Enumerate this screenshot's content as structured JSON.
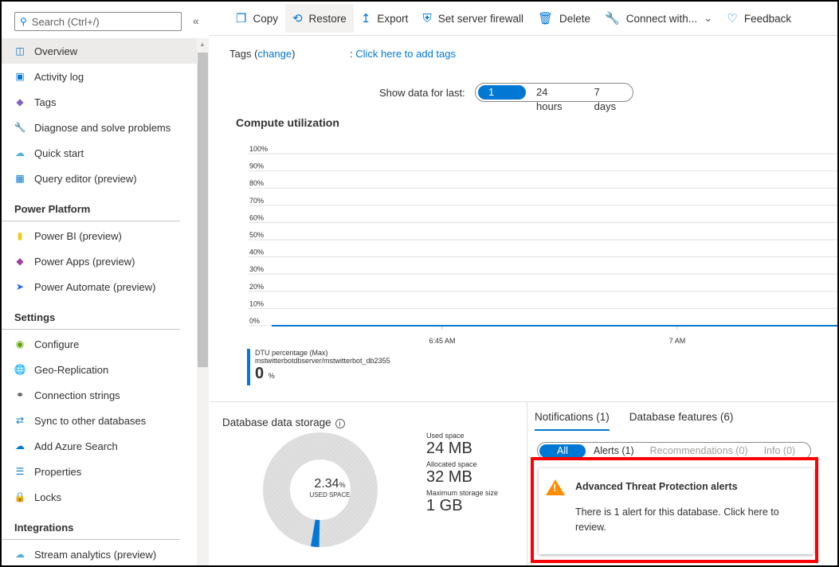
{
  "sidebar": {
    "search_placeholder": "Search (Ctrl+/)",
    "items": [
      {
        "label": "Overview",
        "icon": "sql-database-icon",
        "active": true
      },
      {
        "label": "Activity log",
        "icon": "activity-log-icon"
      },
      {
        "label": "Tags",
        "icon": "tag-icon"
      },
      {
        "label": "Diagnose and solve problems",
        "icon": "wrench-icon"
      },
      {
        "label": "Quick start",
        "icon": "cloud-icon"
      },
      {
        "label": "Query editor (preview)",
        "icon": "query-editor-icon"
      }
    ],
    "sections": [
      {
        "title": "Power Platform",
        "items": [
          {
            "label": "Power BI (preview)",
            "icon": "power-bi-icon"
          },
          {
            "label": "Power Apps (preview)",
            "icon": "power-apps-icon"
          },
          {
            "label": "Power Automate (preview)",
            "icon": "power-automate-icon"
          }
        ]
      },
      {
        "title": "Settings",
        "items": [
          {
            "label": "Configure",
            "icon": "configure-icon"
          },
          {
            "label": "Geo-Replication",
            "icon": "globe-icon"
          },
          {
            "label": "Connection strings",
            "icon": "plug-icon"
          },
          {
            "label": "Sync to other databases",
            "icon": "sync-icon"
          },
          {
            "label": "Add Azure Search",
            "icon": "cloud-search-icon"
          },
          {
            "label": "Properties",
            "icon": "properties-icon"
          },
          {
            "label": "Locks",
            "icon": "lock-icon"
          }
        ]
      },
      {
        "title": "Integrations",
        "items": [
          {
            "label": "Stream analytics (preview)",
            "icon": "stream-analytics-icon"
          }
        ]
      }
    ]
  },
  "toolbar": {
    "copy": "Copy",
    "restore": "Restore",
    "export": "Export",
    "firewall": "Set server firewall",
    "delete": "Delete",
    "connect": "Connect with...",
    "feedback": "Feedback"
  },
  "tags": {
    "label": "Tags",
    "change": "change",
    "add": "Click here to add tags"
  },
  "time_range": {
    "label": "Show data for last:",
    "options": [
      "1 hour",
      "24 hours",
      "7 days"
    ],
    "selected": "1 hour"
  },
  "compute": {
    "title": "Compute utilization"
  },
  "chart_data": {
    "type": "line",
    "y_ticks": [
      "100%",
      "90%",
      "80%",
      "70%",
      "60%",
      "50%",
      "40%",
      "30%",
      "20%",
      "10%",
      "0%"
    ],
    "ylim": [
      0,
      100
    ],
    "x_ticks": [
      "6:45 AM",
      "7 AM"
    ],
    "grid": true,
    "series": [
      {
        "name": "DTU percentage (Max)",
        "values": [
          0,
          0
        ],
        "color": "#0078d4"
      }
    ],
    "legend": {
      "metric": "DTU percentage (Max)",
      "resource": "mstwitterbotdbserver/mstwitterbot_db2355",
      "value": "0",
      "unit": "%"
    }
  },
  "storage": {
    "title": "Database data storage",
    "percent": "2.34",
    "percent_unit": "%",
    "percent_value": 2.34,
    "center_label": "USED SPACE",
    "used_label": "Used space",
    "used": "24 MB",
    "allocated_label": "Allocated space",
    "allocated": "32 MB",
    "max_label": "Maximum storage size",
    "max": "1 GB"
  },
  "notifications": {
    "tabs": [
      "Notifications (1)",
      "Database features (6)"
    ],
    "filters": [
      "All",
      "Alerts (1)",
      "Recommendations (0)",
      "Info (0)"
    ],
    "card_title": "Advanced Threat Protection alerts",
    "card_body": "There is 1 alert for this database. Click here to review.",
    "highlight_color": "#ff0000"
  }
}
